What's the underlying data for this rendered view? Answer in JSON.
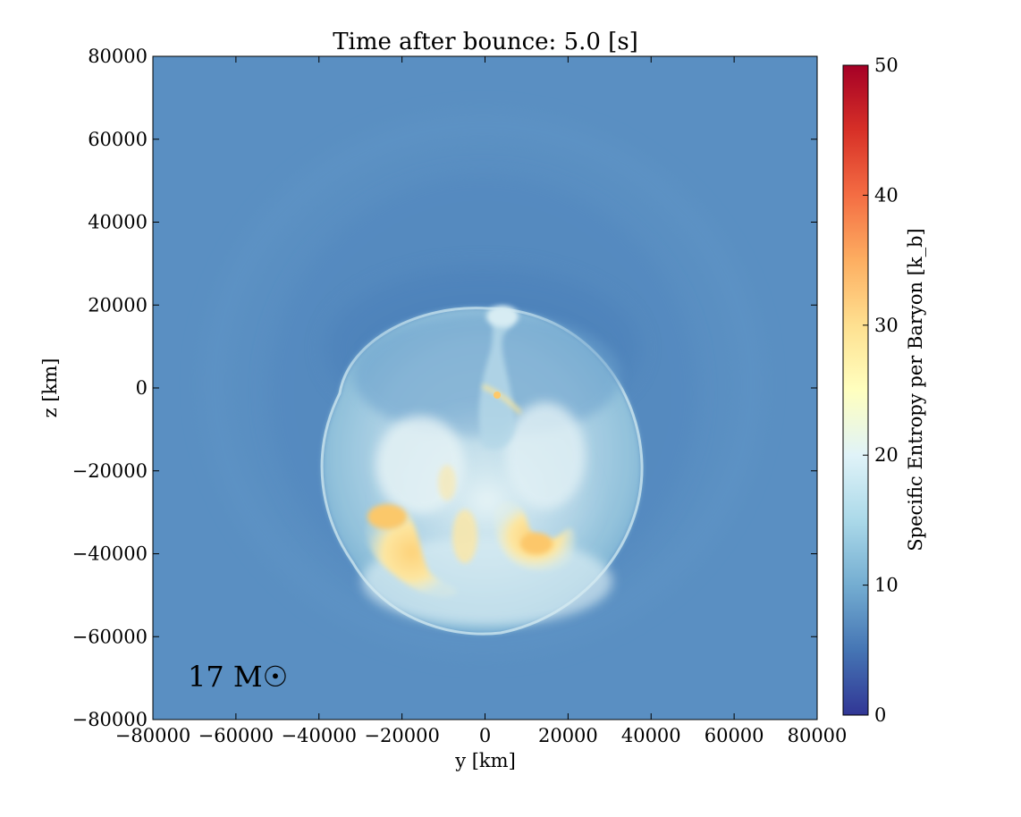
{
  "chart_data": {
    "type": "heatmap",
    "title": "Time after bounce: 5.0 [s]",
    "xlabel": "y [km]",
    "ylabel": "z [km]",
    "xlim": [
      -80000,
      80000
    ],
    "ylim": [
      -80000,
      80000
    ],
    "xticks": [
      -80000,
      -60000,
      -40000,
      -20000,
      0,
      20000,
      40000,
      60000,
      80000
    ],
    "yticks": [
      -80000,
      -60000,
      -40000,
      -20000,
      0,
      20000,
      40000,
      60000,
      80000
    ],
    "xtick_labels": [
      "−80000",
      "−60000",
      "−40000",
      "−20000",
      "0",
      "20000",
      "40000",
      "60000",
      "80000"
    ],
    "ytick_labels": [
      "−80000",
      "−60000",
      "−40000",
      "−20000",
      "0",
      "20000",
      "40000",
      "60000",
      "80000"
    ],
    "annotation": "17 M☉",
    "colorbar": {
      "label": "Specific Entropy per Baryon [k_b]",
      "range": [
        0,
        50
      ],
      "ticks": [
        0,
        10,
        20,
        30,
        40,
        50
      ],
      "colormap": "RdYlBu_r",
      "colors": [
        "#313695",
        "#4575b4",
        "#74add1",
        "#abd9e9",
        "#e0f3f8",
        "#ffffbf",
        "#fee090",
        "#fdae61",
        "#f46d43",
        "#d73027",
        "#a50026"
      ]
    },
    "background_entropy": 8.5,
    "features": [
      {
        "name": "shocked-ejecta-shell",
        "center": [
          0,
          -20000
        ],
        "extent": [
          38000,
          41000
        ],
        "entropy": 14
      },
      {
        "name": "hot-bubble-left",
        "center": [
          -22000,
          -38000
        ],
        "entropy": 32
      },
      {
        "name": "hot-bubble-right",
        "center": [
          12000,
          -36000
        ],
        "entropy": 32
      },
      {
        "name": "plume-tip",
        "center": [
          5000,
          18000
        ],
        "entropy": 18
      },
      {
        "name": "hot-filament",
        "center": [
          3000,
          -2000
        ],
        "entropy": 34
      }
    ]
  }
}
